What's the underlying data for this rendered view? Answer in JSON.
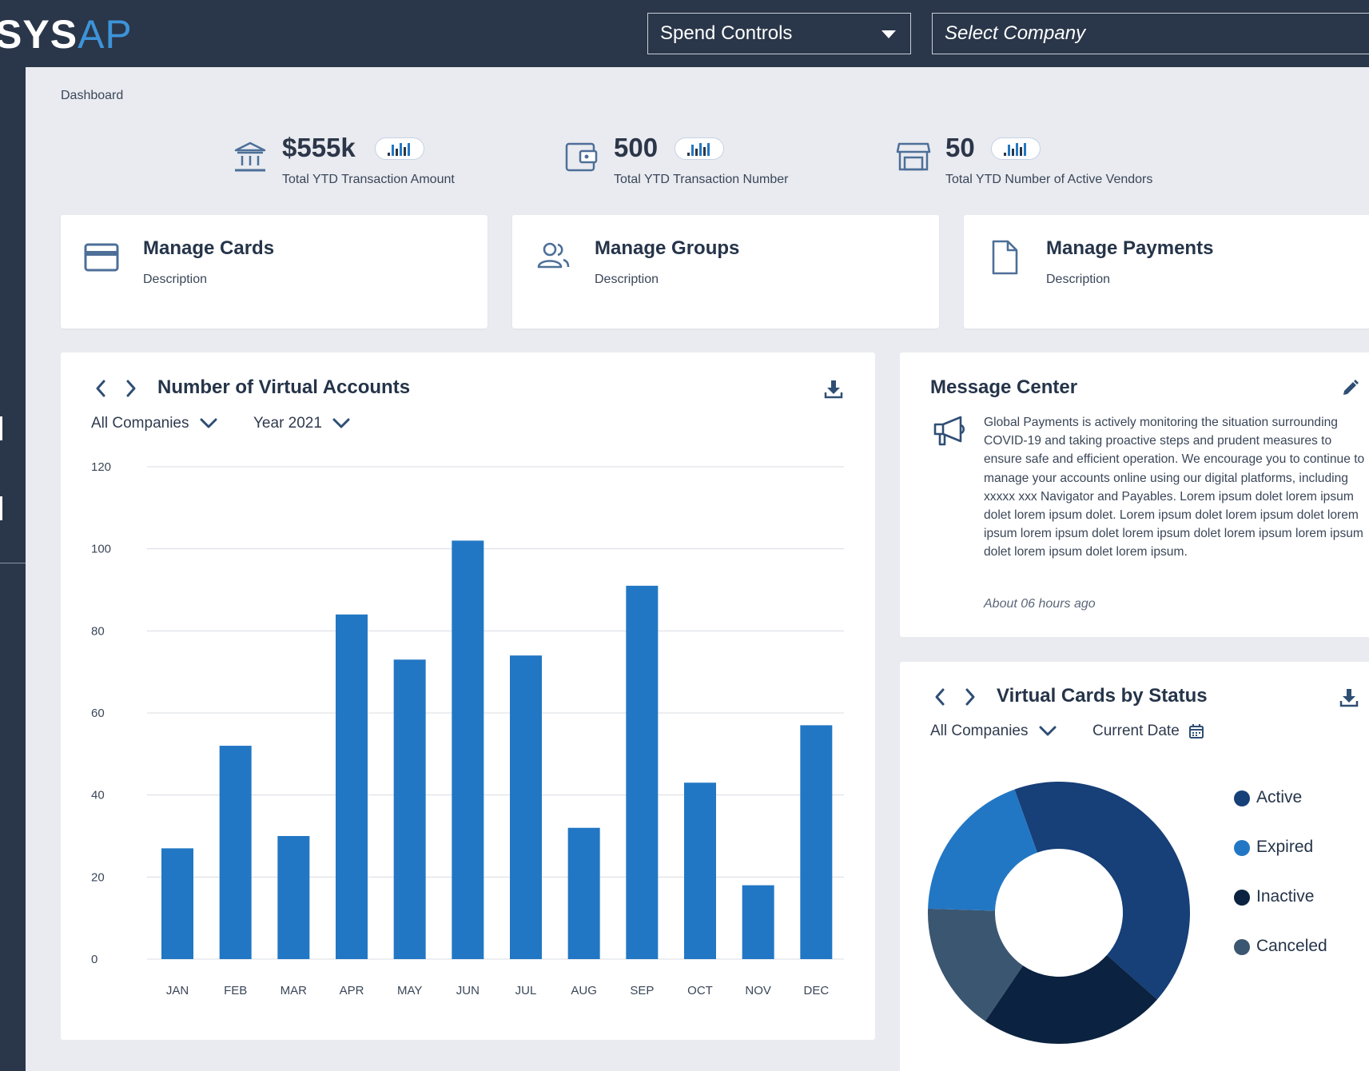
{
  "header": {
    "logo_bold": "SYS",
    "logo_light": "AP",
    "program_select": "Spend Controls",
    "company_select": "Select Company"
  },
  "breadcrumb": "Dashboard",
  "kpis": [
    {
      "value": "$555k",
      "label": "Total YTD Transaction Amount",
      "icon": "bank-icon"
    },
    {
      "value": "500",
      "label": "Total YTD Transaction Number",
      "icon": "wallet-icon"
    },
    {
      "value": "50",
      "label": "Total YTD Number of Active Vendors",
      "icon": "store-icon"
    }
  ],
  "manage": [
    {
      "title": "Manage Cards",
      "desc": "Description",
      "icon": "credit-card-icon"
    },
    {
      "title": "Manage Groups",
      "desc": "Description",
      "icon": "users-icon"
    },
    {
      "title": "Manage Payments",
      "desc": "Description",
      "icon": "document-icon"
    }
  ],
  "accounts_panel": {
    "title": "Number of Virtual Accounts",
    "company_filter": "All Companies",
    "year_filter": "Year 2021"
  },
  "message_center": {
    "title": "Message Center",
    "body": "Global Payments is actively monitoring the situation surrounding COVID-19 and taking proactive steps and prudent measures to ensure safe and efficient operation. We encourage you to continue to manage your accounts online using our digital platforms, including xxxxx xxx Navigator and Payables. Lorem ipsum dolet lorem ipsum dolet lorem ipsum dolet. Lorem ipsum dolet lorem ipsum dolet lorem ipsum lorem ipsum dolet lorem ipsum dolet lorem ipsum lorem ipsum dolet lorem ipsum dolet lorem ipsum.",
    "time": "About 06 hours ago"
  },
  "status_panel": {
    "title": "Virtual Cards by Status",
    "company_filter": "All Companies",
    "date_filter": "Current Date"
  },
  "colors": {
    "header_bg": "#2a3649",
    "bar": "#2277c4",
    "accent": "#3d93d8",
    "text": "#253449"
  },
  "chart_data": [
    {
      "type": "bar",
      "title": "Number of Virtual Accounts",
      "categories": [
        "JAN",
        "FEB",
        "MAR",
        "APR",
        "MAY",
        "JUN",
        "JUL",
        "AUG",
        "SEP",
        "OCT",
        "NOV",
        "DEC"
      ],
      "values": [
        27,
        52,
        30,
        84,
        73,
        102,
        74,
        32,
        91,
        43,
        18,
        57
      ],
      "ylim": [
        0,
        120
      ],
      "yticks": [
        0,
        20,
        40,
        60,
        80,
        100,
        120
      ],
      "grid": true,
      "color": "#2277c4"
    },
    {
      "type": "pie",
      "title": "Virtual Cards by Status",
      "donut": true,
      "legend_position": "right",
      "slices": [
        {
          "label": "Active",
          "value": 42,
          "color": "#173f78"
        },
        {
          "label": "Expired",
          "value": 19,
          "color": "#2277c4"
        },
        {
          "label": "Inactive",
          "value": 23,
          "color": "#0b2240"
        },
        {
          "label": "Canceled",
          "value": 16,
          "color": "#3b5671"
        }
      ]
    }
  ]
}
